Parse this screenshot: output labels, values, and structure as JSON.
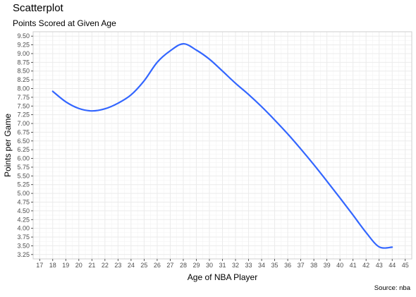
{
  "chart_data": {
    "type": "line",
    "title": "Scatterplot",
    "subtitle": "Points Scored at Given Age",
    "caption": "Source: nba",
    "xlabel": "Age of NBA Player",
    "ylabel": "Points per Game",
    "xlim": [
      17,
      45
    ],
    "ylim": [
      3.25,
      9.5
    ],
    "x_ticks": [
      17,
      18,
      19,
      20,
      21,
      22,
      23,
      24,
      25,
      26,
      27,
      28,
      29,
      30,
      31,
      32,
      33,
      34,
      35,
      36,
      37,
      38,
      39,
      40,
      41,
      42,
      43,
      44,
      45
    ],
    "y_ticks": [
      "3.25",
      "3.50",
      "3.75",
      "4.00",
      "4.25",
      "4.50",
      "4.75",
      "5.00",
      "5.25",
      "5.50",
      "5.75",
      "6.00",
      "6.25",
      "6.50",
      "6.75",
      "7.00",
      "7.25",
      "7.50",
      "7.75",
      "8.00",
      "8.25",
      "8.50",
      "8.75",
      "9.00",
      "9.25",
      "9.50"
    ],
    "grid": true,
    "line_color": "#3366FF",
    "series": [
      {
        "name": "",
        "x": [
          18,
          19,
          20,
          21,
          22,
          23,
          24,
          25,
          26,
          27,
          28,
          29,
          30,
          31,
          32,
          33,
          34,
          35,
          36,
          37,
          38,
          39,
          40,
          41,
          42,
          43,
          44
        ],
        "y": [
          7.92,
          7.62,
          7.43,
          7.36,
          7.42,
          7.58,
          7.82,
          8.22,
          8.75,
          9.08,
          9.28,
          9.1,
          8.84,
          8.5,
          8.15,
          7.83,
          7.48,
          7.1,
          6.7,
          6.27,
          5.82,
          5.35,
          4.87,
          4.38,
          3.88,
          3.47,
          3.46
        ]
      }
    ]
  }
}
